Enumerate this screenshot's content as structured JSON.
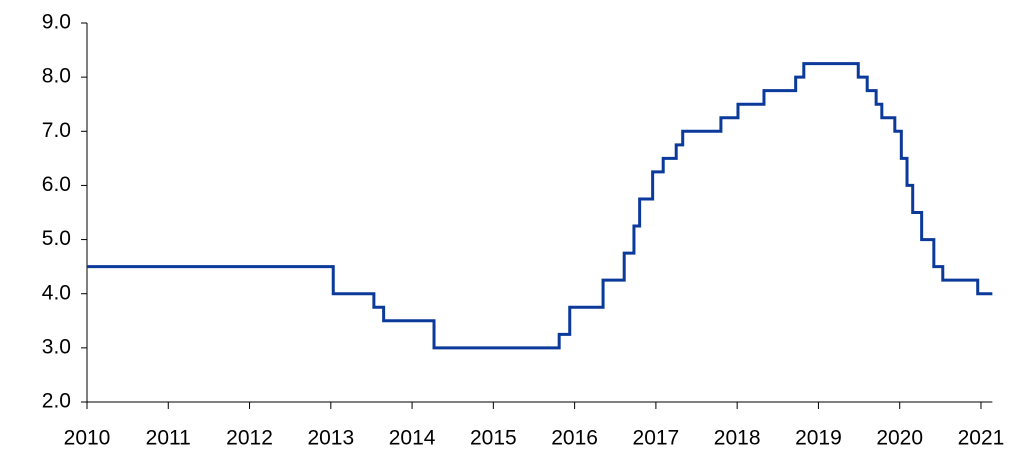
{
  "chart_data": {
    "type": "line",
    "step": "post",
    "color": "#0b3a9a",
    "x": [
      2010,
      2013.03,
      2013.53,
      2013.65,
      2014.27,
      2015.81,
      2015.94,
      2016.35,
      2016.61,
      2016.73,
      2016.8,
      2016.96,
      2017.09,
      2017.25,
      2017.33,
      2017.8,
      2018.01,
      2018.33,
      2018.72,
      2018.82,
      2019.49,
      2019.6,
      2019.71,
      2019.78,
      2019.94,
      2020.02,
      2020.09,
      2020.16,
      2020.27,
      2020.42,
      2020.53,
      2020.96,
      2021.14
    ],
    "values": [
      4.5,
      4.0,
      3.75,
      3.5,
      3.0,
      3.25,
      3.75,
      4.25,
      4.75,
      5.25,
      5.75,
      6.25,
      6.5,
      6.75,
      7.0,
      7.25,
      7.5,
      7.75,
      8.0,
      8.25,
      8.0,
      7.75,
      7.5,
      7.25,
      7.0,
      6.5,
      6.0,
      5.5,
      5.0,
      4.5,
      4.25,
      4.0,
      4.0
    ],
    "xlim": [
      2010,
      2021.14
    ],
    "xticks": [
      2010,
      2011,
      2012,
      2013,
      2014,
      2015,
      2016,
      2017,
      2018,
      2019,
      2020,
      2021
    ],
    "ylim": [
      2,
      9
    ],
    "yticks": [
      {
        "value": 2,
        "label": "2.0"
      },
      {
        "value": 3,
        "label": "3.0"
      },
      {
        "value": 4,
        "label": "4.0"
      },
      {
        "value": 5,
        "label": "5.0"
      },
      {
        "value": 6,
        "label": "6.0"
      },
      {
        "value": 7,
        "label": "7.0"
      },
      {
        "value": 8,
        "label": "8.0"
      },
      {
        "value": 9,
        "label": "9.0"
      }
    ],
    "grid": false
  }
}
